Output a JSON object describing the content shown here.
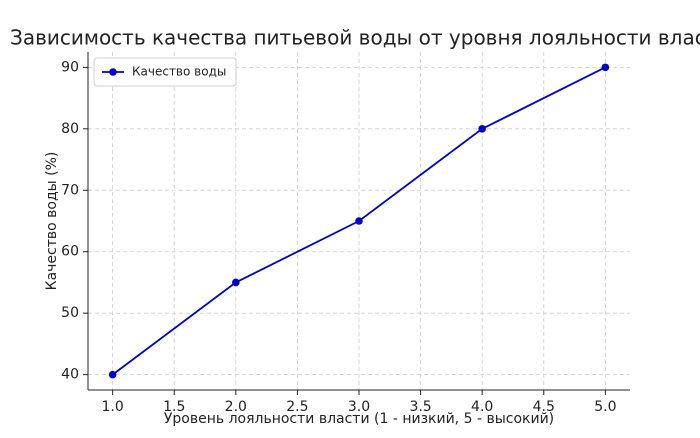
{
  "chart_data": {
    "type": "line",
    "title": "Зависимость качества питьевой воды от уровня лояльности власти",
    "x_label": "Уровень лояльности власти (1 - низкий, 5 - высокий)",
    "y_label": "Качество воды (%)",
    "x": [
      1,
      2,
      3,
      4,
      5
    ],
    "series": [
      {
        "name": "Качество воды",
        "color": "#0000cc",
        "values": [
          40,
          55,
          65,
          80,
          90
        ]
      }
    ],
    "xlim": [
      0.8,
      5.2
    ],
    "xticks": [
      {
        "value": 1,
        "label": "1.0"
      },
      {
        "value": 1.5,
        "label": "1.5"
      },
      {
        "value": 2,
        "label": "2.0"
      },
      {
        "value": 2.5,
        "label": "2.5"
      },
      {
        "value": 3,
        "label": "3.0"
      },
      {
        "value": 3.5,
        "label": "3.5"
      },
      {
        "value": 4,
        "label": "4.0"
      },
      {
        "value": 4.5,
        "label": "4.5"
      },
      {
        "value": 5,
        "label": "5.0"
      }
    ],
    "ylim": [
      37.5,
      92.5
    ],
    "yticks": [
      40,
      50,
      60,
      70,
      80,
      90
    ],
    "grid": true,
    "legend": "upper left"
  }
}
